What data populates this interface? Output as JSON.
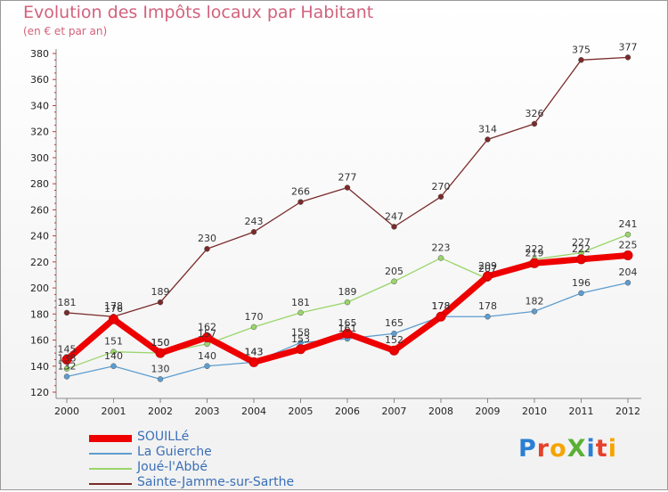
{
  "title": "Evolution des Impôts locaux par Habitant",
  "subtitle": "(en € et par an)",
  "logo_text": "ProXiti",
  "chart_data": {
    "type": "line",
    "title": "Evolution des Impôts locaux par Habitant",
    "subtitle": "(en € et par an)",
    "xlabel": "",
    "ylabel": "",
    "x": [
      "2000",
      "2001",
      "2002",
      "2003",
      "2004",
      "2005",
      "2006",
      "2007",
      "2008",
      "2009",
      "2010",
      "2011",
      "2012"
    ],
    "ylim": [
      120,
      380
    ],
    "yticks": [
      120,
      140,
      160,
      180,
      200,
      220,
      240,
      260,
      280,
      300,
      320,
      340,
      360,
      380
    ],
    "grid": false,
    "legend_position": "bottom-left",
    "series": [
      {
        "name": "SOUILLé",
        "color": "#ee0000",
        "values": [
          145,
          176,
          150,
          162,
          143,
          153,
          165,
          152,
          178,
          209,
          219,
          222,
          225
        ],
        "labels": [
          "145",
          "176",
          "150",
          "162",
          "143",
          "153",
          "165",
          "152",
          "178",
          "209",
          "219",
          "222",
          "225"
        ]
      },
      {
        "name": "La Guierche",
        "color": "#5d9dd0",
        "values": [
          132,
          140,
          130,
          140,
          143,
          158,
          161,
          165,
          178,
          178,
          182,
          196,
          204
        ],
        "labels": [
          "132",
          "140",
          "130",
          "140",
          "143",
          "158",
          "161",
          "165",
          "178",
          "178",
          "182",
          "196",
          "204"
        ]
      },
      {
        "name": "Joué-l'Abbé",
        "color": "#9ad56a",
        "values": [
          138,
          151,
          150,
          157,
          170,
          181,
          189,
          205,
          223,
          207,
          222,
          227,
          241
        ],
        "labels": [
          "138",
          "151",
          "150",
          "157",
          "170",
          "181",
          "189",
          "205",
          "223",
          "207",
          "222",
          "227",
          "241"
        ]
      },
      {
        "name": "Sainte-Jamme-sur-Sarthe",
        "color": "#7a2a2a",
        "values": [
          181,
          178,
          189,
          230,
          243,
          266,
          277,
          247,
          270,
          314,
          326,
          375,
          377
        ],
        "labels": [
          "181",
          "178",
          "189",
          "230",
          "243",
          "266",
          "277",
          "247",
          "270",
          "314",
          "326",
          "375",
          "377"
        ]
      }
    ]
  }
}
